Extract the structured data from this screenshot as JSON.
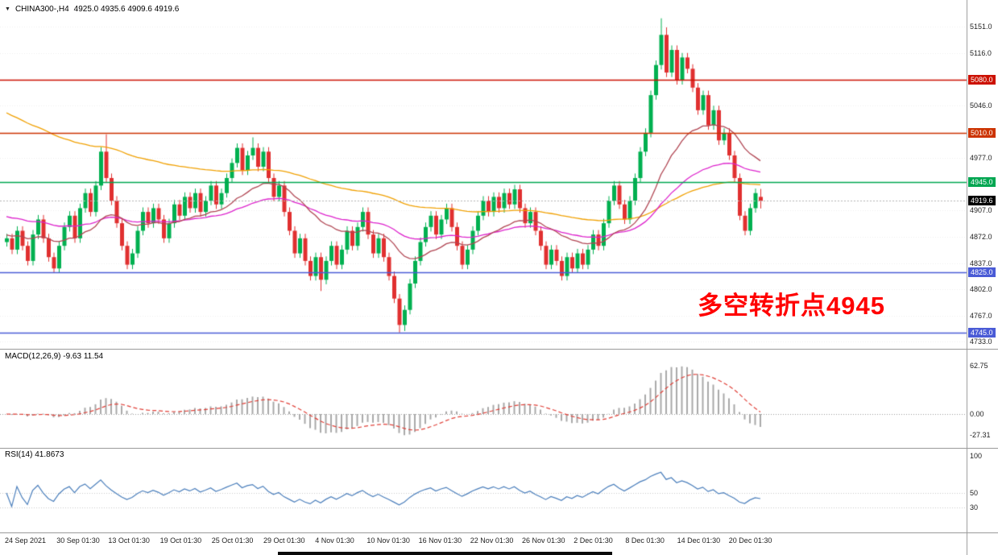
{
  "header": {
    "dropdown_icon": "▼",
    "symbol_timeframe": "CHINA300-,H4",
    "ohlc_text": "4925.0 4935.6 4909.6 4919.6"
  },
  "indicators": {
    "macd_label": "MACD(12,26,9) -9.63 11.54",
    "rsi_label": "RSI(14) 41.8673"
  },
  "annotation": {
    "text": "多空转折点4945",
    "color": "#FF0000"
  },
  "colors": {
    "background": "#FFFFFF",
    "up_candle": "#00B050",
    "down_candle": "#E03030",
    "resistance_line_1": "#CC1100",
    "resistance_line_2": "#CC3300",
    "pivot_line": "#00A651",
    "support_line": "#4A5BD6",
    "ma_slow": "#F0A000",
    "ma_medium": "#DD22CC",
    "ma_fast": "#B04552",
    "macd_histogram": "#A9A9A9",
    "macd_signal": "#E04038",
    "rsi_line": "#4A7EBB",
    "current_price_badge": "#000000"
  },
  "chart_data": [
    {
      "type": "candlestick",
      "title": "CHINA300-",
      "timeframe": "H4",
      "current_bar": {
        "open": 4925.0,
        "high": 4935.6,
        "low": 4909.6,
        "close": 4919.6
      },
      "ylim": [
        4733,
        5151
      ],
      "y_axis_labels": [
        5151.0,
        5116.0,
        5046.0,
        4977.0,
        4907.0,
        4872.0,
        4837.0,
        4802.0,
        4767.0,
        4733.0
      ],
      "x_labels": [
        "24 Sep 2021",
        "30 Sep 01:30",
        "13 Oct 01:30",
        "19 Oct 01:30",
        "25 Oct 01:30",
        "29 Oct 01:30",
        "4 Nov 01:30",
        "10 Nov 01:30",
        "16 Nov 01:30",
        "22 Nov 01:30",
        "26 Nov 01:30",
        "2 Dec 01:30",
        "8 Dec 01:30",
        "14 Dec 01:30",
        "20 Dec 01:30"
      ],
      "levels": [
        {
          "label": "5080.0",
          "price": 5080.0,
          "color": "#CC1100"
        },
        {
          "label": "5010.0",
          "price": 5010.0,
          "color": "#CC3300"
        },
        {
          "label": "4945.0",
          "price": 4945.0,
          "color": "#00A651"
        },
        {
          "label": "4825.0",
          "price": 4825.0,
          "color": "#4A5BD6"
        },
        {
          "label": "4745.0",
          "price": 4745.0,
          "color": "#4A5BD6"
        }
      ],
      "moving_averages": [
        {
          "name": "ma-slow",
          "period": 100,
          "seed": 5040,
          "color": "#F0A000"
        },
        {
          "name": "ma-medium",
          "period": 50,
          "seed": 4900,
          "color": "#DD22CC"
        },
        {
          "name": "ma-fast",
          "period": 22,
          "seed": 4875,
          "color": "#B04552"
        }
      ],
      "up_color": "#00B050",
      "down_color": "#E03030",
      "candles": [
        [
          4865,
          4876,
          4859,
          4870
        ],
        [
          4870,
          4876,
          4849,
          4855
        ],
        [
          4855,
          4886,
          4849,
          4880
        ],
        [
          4880,
          4886,
          4854,
          4860
        ],
        [
          4860,
          4866,
          4834,
          4840
        ],
        [
          4840,
          4881,
          4834,
          4875
        ],
        [
          4875,
          4901,
          4869,
          4895
        ],
        [
          4895,
          4901,
          4864,
          4870
        ],
        [
          4870,
          4876,
          4839,
          4845
        ],
        [
          4845,
          4851,
          4824,
          4830
        ],
        [
          4830,
          4866,
          4824,
          4860
        ],
        [
          4860,
          4891,
          4854,
          4885
        ],
        [
          4885,
          4906,
          4879,
          4900
        ],
        [
          4900,
          4906,
          4864,
          4870
        ],
        [
          4870,
          4916,
          4864,
          4910
        ],
        [
          4910,
          4936,
          4904,
          4930
        ],
        [
          4930,
          4936,
          4899,
          4905
        ],
        [
          4905,
          4946,
          4899,
          4940
        ],
        [
          4940,
          4991,
          4934,
          4985
        ],
        [
          4985,
          5008,
          4944,
          4950
        ],
        [
          4950,
          4956,
          4914,
          4920
        ],
        [
          4920,
          4926,
          4884,
          4890
        ],
        [
          4890,
          4896,
          4854,
          4860
        ],
        [
          4860,
          4866,
          4829,
          4835
        ],
        [
          4835,
          4856,
          4829,
          4850
        ],
        [
          4850,
          4886,
          4844,
          4880
        ],
        [
          4880,
          4911,
          4874,
          4905
        ],
        [
          4905,
          4911,
          4884,
          4890
        ],
        [
          4890,
          4916,
          4884,
          4910
        ],
        [
          4910,
          4916,
          4889,
          4895
        ],
        [
          4895,
          4901,
          4864,
          4870
        ],
        [
          4870,
          4896,
          4864,
          4890
        ],
        [
          4890,
          4921,
          4884,
          4915
        ],
        [
          4915,
          4921,
          4894,
          4900
        ],
        [
          4900,
          4931,
          4894,
          4925
        ],
        [
          4925,
          4931,
          4904,
          4910
        ],
        [
          4910,
          4936,
          4904,
          4930
        ],
        [
          4930,
          4936,
          4899,
          4905
        ],
        [
          4905,
          4926,
          4899,
          4920
        ],
        [
          4920,
          4946,
          4914,
          4940
        ],
        [
          4940,
          4946,
          4909,
          4915
        ],
        [
          4915,
          4936,
          4909,
          4930
        ],
        [
          4930,
          4956,
          4924,
          4950
        ],
        [
          4950,
          4976,
          4944,
          4970
        ],
        [
          4970,
          4996,
          4964,
          4990
        ],
        [
          4990,
          4996,
          4954,
          4960
        ],
        [
          4960,
          4986,
          4954,
          4980
        ],
        [
          4980,
          5004,
          4974,
          4990
        ],
        [
          4990,
          4996,
          4959,
          4965
        ],
        [
          4965,
          4991,
          4959,
          4985
        ],
        [
          4985,
          4991,
          4944,
          4950
        ],
        [
          4950,
          4956,
          4919,
          4925
        ],
        [
          4925,
          4946,
          4919,
          4940
        ],
        [
          4940,
          4946,
          4899,
          4905
        ],
        [
          4905,
          4911,
          4874,
          4880
        ],
        [
          4880,
          4886,
          4844,
          4850
        ],
        [
          4850,
          4876,
          4844,
          4870
        ],
        [
          4870,
          4876,
          4834,
          4840
        ],
        [
          4840,
          4846,
          4814,
          4820
        ],
        [
          4820,
          4851,
          4814,
          4845
        ],
        [
          4845,
          4851,
          4800,
          4815
        ],
        [
          4815,
          4846,
          4809,
          4840
        ],
        [
          4840,
          4866,
          4834,
          4860
        ],
        [
          4860,
          4866,
          4829,
          4835
        ],
        [
          4835,
          4861,
          4829,
          4855
        ],
        [
          4855,
          4886,
          4849,
          4880
        ],
        [
          4880,
          4886,
          4854,
          4860
        ],
        [
          4860,
          4891,
          4854,
          4885
        ],
        [
          4885,
          4911,
          4879,
          4905
        ],
        [
          4905,
          4911,
          4869,
          4875
        ],
        [
          4875,
          4881,
          4844,
          4850
        ],
        [
          4850,
          4876,
          4844,
          4870
        ],
        [
          4870,
          4876,
          4839,
          4845
        ],
        [
          4845,
          4851,
          4814,
          4820
        ],
        [
          4820,
          4826,
          4784,
          4790
        ],
        [
          4790,
          4796,
          4745,
          4755
        ],
        [
          4755,
          4781,
          4747,
          4775
        ],
        [
          4775,
          4816,
          4769,
          4810
        ],
        [
          4810,
          4846,
          4804,
          4840
        ],
        [
          4840,
          4871,
          4834,
          4865
        ],
        [
          4865,
          4891,
          4859,
          4885
        ],
        [
          4885,
          4906,
          4879,
          4900
        ],
        [
          4900,
          4906,
          4869,
          4875
        ],
        [
          4875,
          4901,
          4869,
          4895
        ],
        [
          4895,
          4916,
          4889,
          4910
        ],
        [
          4910,
          4916,
          4879,
          4885
        ],
        [
          4885,
          4891,
          4854,
          4860
        ],
        [
          4860,
          4866,
          4829,
          4835
        ],
        [
          4835,
          4861,
          4829,
          4855
        ],
        [
          4855,
          4886,
          4849,
          4880
        ],
        [
          4880,
          4906,
          4874,
          4900
        ],
        [
          4900,
          4926,
          4894,
          4920
        ],
        [
          4920,
          4926,
          4899,
          4905
        ],
        [
          4905,
          4931,
          4899,
          4925
        ],
        [
          4925,
          4931,
          4904,
          4910
        ],
        [
          4910,
          4936,
          4904,
          4930
        ],
        [
          4930,
          4936,
          4909,
          4915
        ],
        [
          4915,
          4941,
          4909,
          4935
        ],
        [
          4935,
          4941,
          4904,
          4910
        ],
        [
          4910,
          4916,
          4884,
          4890
        ],
        [
          4890,
          4911,
          4884,
          4905
        ],
        [
          4905,
          4911,
          4874,
          4880
        ],
        [
          4880,
          4886,
          4854,
          4860
        ],
        [
          4860,
          4866,
          4829,
          4835
        ],
        [
          4835,
          4861,
          4829,
          4855
        ],
        [
          4855,
          4861,
          4834,
          4840
        ],
        [
          4840,
          4846,
          4814,
          4820
        ],
        [
          4820,
          4851,
          4814,
          4845
        ],
        [
          4845,
          4851,
          4824,
          4830
        ],
        [
          4830,
          4856,
          4824,
          4850
        ],
        [
          4850,
          4856,
          4829,
          4835
        ],
        [
          4835,
          4861,
          4829,
          4855
        ],
        [
          4855,
          4881,
          4849,
          4875
        ],
        [
          4875,
          4881,
          4854,
          4860
        ],
        [
          4860,
          4896,
          4854,
          4890
        ],
        [
          4890,
          4926,
          4884,
          4920
        ],
        [
          4920,
          4946,
          4914,
          4940
        ],
        [
          4940,
          4946,
          4909,
          4915
        ],
        [
          4915,
          4921,
          4889,
          4895
        ],
        [
          4895,
          4926,
          4889,
          4920
        ],
        [
          4920,
          4956,
          4914,
          4950
        ],
        [
          4950,
          4991,
          4944,
          4985
        ],
        [
          4985,
          5016,
          4979,
          5010
        ],
        [
          5010,
          5066,
          5004,
          5060
        ],
        [
          5060,
          5106,
          5054,
          5100
        ],
        [
          5100,
          5162,
          5094,
          5140
        ],
        [
          5140,
          5150,
          5084,
          5090
        ],
        [
          5090,
          5126,
          5084,
          5120
        ],
        [
          5120,
          5126,
          5074,
          5080
        ],
        [
          5080,
          5116,
          5074,
          5110
        ],
        [
          5110,
          5116,
          5089,
          5095
        ],
        [
          5095,
          5101,
          5064,
          5070
        ],
        [
          5070,
          5076,
          5034,
          5040
        ],
        [
          5040,
          5066,
          5034,
          5060
        ],
        [
          5060,
          5066,
          5014,
          5020
        ],
        [
          5020,
          5046,
          5014,
          5040
        ],
        [
          5040,
          5046,
          4994,
          5000
        ],
        [
          5000,
          5016,
          4994,
          5010
        ],
        [
          5010,
          5016,
          4974,
          4980
        ],
        [
          4980,
          4986,
          4944,
          4950
        ],
        [
          4950,
          4956,
          4894,
          4900
        ],
        [
          4900,
          4906,
          4874,
          4880
        ],
        [
          4880,
          4916,
          4874,
          4910
        ],
        [
          4910,
          4936,
          4904,
          4930
        ],
        [
          4925,
          4935.6,
          4909.6,
          4919.6
        ]
      ]
    },
    {
      "type": "macd",
      "label": "MACD(12,26,9)",
      "fast": 12,
      "slow": 26,
      "signal": 9,
      "main_value": -9.63,
      "signal_value": 11.54,
      "y_axis_labels": [
        62.75,
        0.0,
        -27.31
      ],
      "histogram_color": "#A9A9A9",
      "signal_color": "#E04038"
    },
    {
      "type": "rsi",
      "period": 14,
      "value": 41.8673,
      "y_axis_labels": [
        100,
        50,
        30
      ],
      "levels": [
        50,
        30
      ],
      "line_color": "#4A7EBB"
    }
  ]
}
